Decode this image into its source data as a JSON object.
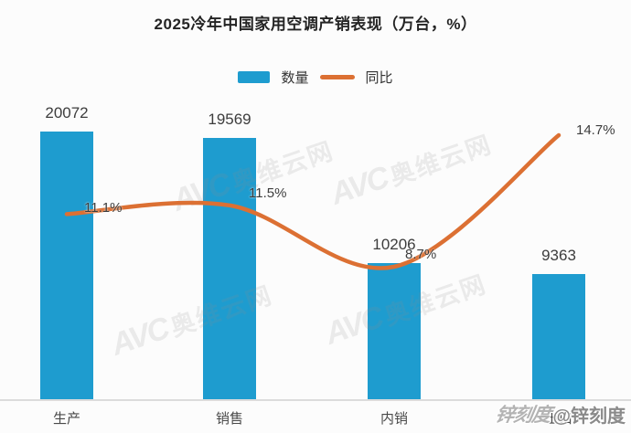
{
  "title": "2025冷年中国家用空调产销表现（万台，%）",
  "legend": {
    "bar_label": "数量",
    "line_label": "同比"
  },
  "colors": {
    "bar": "#1e9ccf",
    "line": "#dc7033",
    "axis": "#dcdcdc",
    "title_text": "#242424"
  },
  "chart_data": {
    "type": "bar",
    "title": "2025冷年中国家用空调产销表现（万台，%）",
    "categories": [
      "生产",
      "销售",
      "内销",
      "出口"
    ],
    "series": [
      {
        "name": "数量",
        "type": "bar",
        "unit": "万台",
        "values": [
          20072,
          19569,
          10206,
          9363
        ],
        "labels": [
          "20072",
          "19569",
          "10206",
          "9363"
        ],
        "color": "#1e9ccf"
      },
      {
        "name": "同比",
        "type": "line",
        "unit": "%",
        "values": [
          11.1,
          11.5,
          8.7,
          14.7
        ],
        "labels": [
          "11.1%",
          "11.5%",
          "8.7%",
          "14.7%"
        ],
        "color": "#dc7033"
      }
    ],
    "legend_position": "top",
    "grid": false,
    "value_axis_visible": false
  },
  "watermarks": {
    "avc_latin": "AVC",
    "avc_cn": "奥维云网",
    "zinc_logo": "锌刻度",
    "zinc_handle": "@锌刻度"
  }
}
